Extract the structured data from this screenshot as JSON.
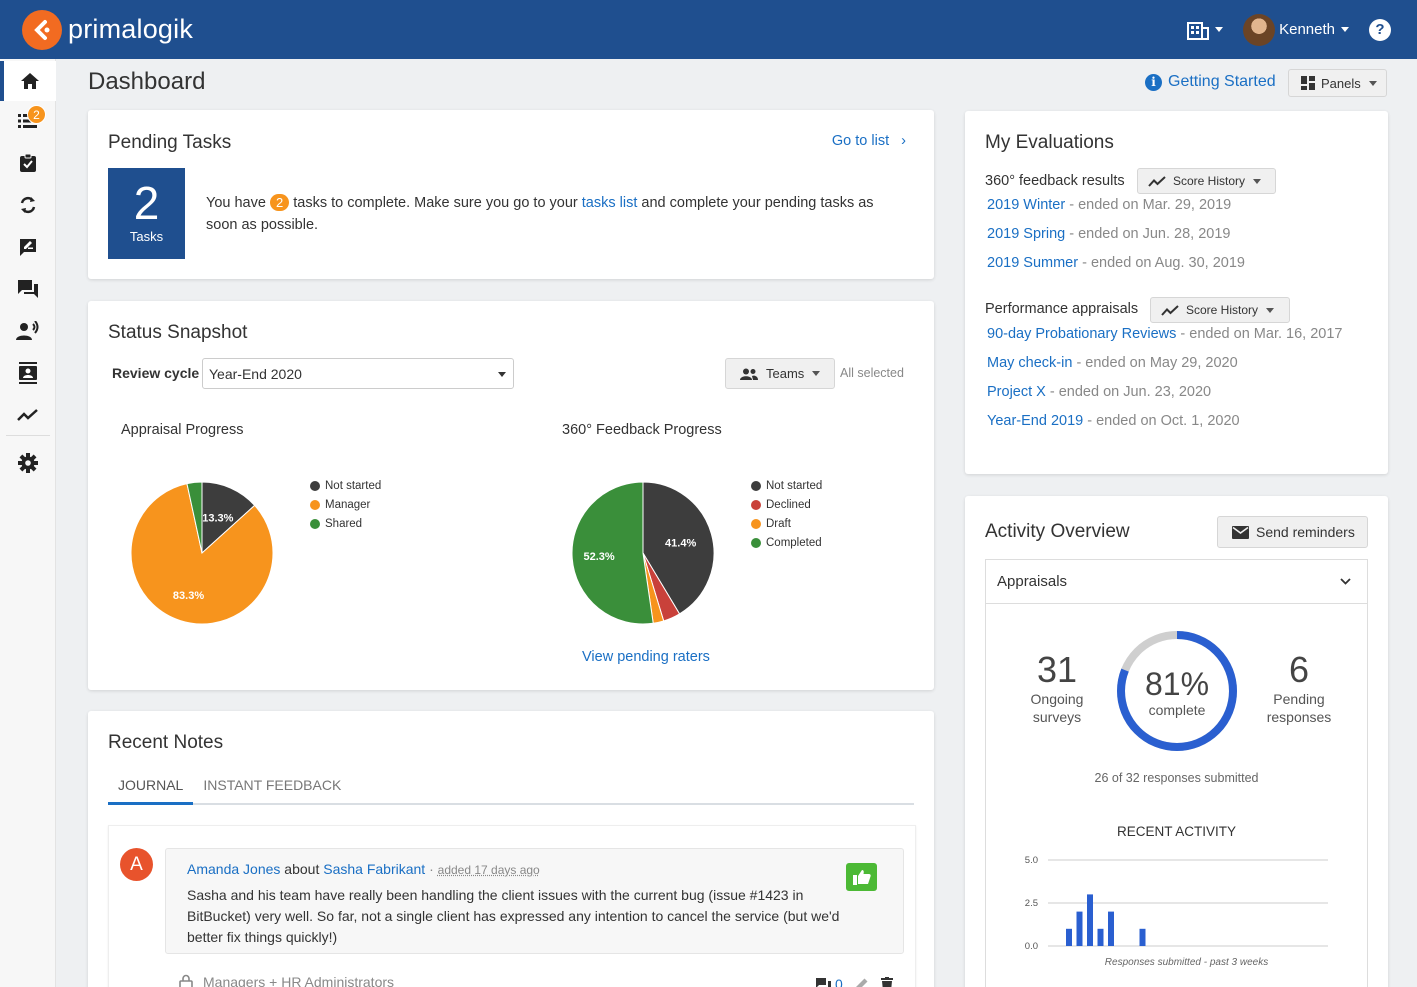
{
  "app": {
    "name": "primalogik",
    "user_name": "Kenneth"
  },
  "sidebar": {
    "tasks_badge": "2"
  },
  "header": {
    "title": "Dashboard",
    "getting_started": "Getting Started",
    "panels": "Panels"
  },
  "pending_tasks": {
    "title": "Pending Tasks",
    "go_to_list": "Go to list",
    "count": "2",
    "count_label": "Tasks",
    "text_prefix": "You have",
    "badge": "2",
    "text_mid": "tasks to complete. Make sure you go to your",
    "link": "tasks list",
    "text_suffix": "and complete your pending tasks as soon as possible."
  },
  "status_snapshot": {
    "title": "Status Snapshot",
    "review_cycle_label": "Review cycle",
    "review_cycle_value": "Year-End 2020",
    "teams_label": "Teams",
    "teams_value": "All selected",
    "view_pending_raters": "View pending raters"
  },
  "chart_data": [
    {
      "type": "pie",
      "title": "Appraisal Progress",
      "labels": [
        "Not started",
        "Manager",
        "Shared"
      ],
      "values": [
        13.3,
        83.3,
        3.4
      ],
      "data_labels": [
        "13.3%",
        "83.3%",
        ""
      ],
      "colors": [
        "#3d3d3d",
        "#f7941d",
        "#3a8f3a"
      ],
      "legend": "right"
    },
    {
      "type": "pie",
      "title": "360° Feedback Progress",
      "labels": [
        "Not started",
        "Declined",
        "Draft",
        "Completed"
      ],
      "values": [
        41.4,
        3.9,
        2.4,
        52.3
      ],
      "data_labels": [
        "41.4%",
        "",
        "",
        "52.3%"
      ],
      "colors": [
        "#3d3d3d",
        "#c9413a",
        "#f7941d",
        "#3a8f3a"
      ],
      "legend": "right"
    },
    {
      "type": "bar",
      "title": "RECENT ACTIVITY",
      "xlabel": "Responses submitted - past 3 weeks",
      "ylim": [
        0,
        5
      ],
      "yticks": [
        "0.0",
        "2.5",
        "5.0"
      ],
      "values": [
        1,
        2,
        3,
        1,
        2,
        0,
        0,
        1
      ],
      "color": "#2a5fd0",
      "grid": true
    }
  ],
  "my_evaluations": {
    "title": "My Evaluations",
    "feedback_label": "360° feedback results",
    "score_history": "Score History",
    "feedback_items": [
      {
        "name": "2019 Winter",
        "ended": "- ended on Mar. 29, 2019"
      },
      {
        "name": "2019 Spring",
        "ended": "- ended on Jun. 28, 2019"
      },
      {
        "name": "2019 Summer",
        "ended": "- ended on Aug. 30, 2019"
      }
    ],
    "appraisals_label": "Performance appraisals",
    "appraisal_items": [
      {
        "name": "90-day Probationary Reviews",
        "ended": "- ended on Mar. 16, 2017"
      },
      {
        "name": "May check-in",
        "ended": "- ended on May 29, 2020"
      },
      {
        "name": "Project X",
        "ended": "- ended on Jun. 23, 2020"
      },
      {
        "name": "Year-End 2019",
        "ended": "- ended on Oct. 1, 2020"
      }
    ]
  },
  "activity": {
    "title": "Activity Overview",
    "send_reminders": "Send reminders",
    "dropdown": "Appraisals",
    "ongoing_num": "31",
    "ongoing_label": "Ongoing surveys",
    "percent": "81%",
    "percent_value": 81,
    "percent_label": "complete",
    "pending_num": "6",
    "pending_label": "Pending responses",
    "submitted": "26 of 32 responses submitted"
  },
  "recent_notes": {
    "title": "Recent Notes",
    "tabs": [
      "JOURNAL",
      "INSTANT FEEDBACK"
    ],
    "note": {
      "avatar_letter": "A",
      "author": "Amanda Jones",
      "about": "about",
      "subject": "Sasha Fabrikant",
      "sep": "·",
      "added": "added 17 days ago",
      "body": "Sasha and his team have really been handling the client issues with the current bug (issue #1423 in BitBucket) very well. So far, not a single client has expressed any intention to cancel the service (but we'd better fix things quickly!)",
      "visibility": "Managers + HR Administrators",
      "comments": "0"
    }
  }
}
